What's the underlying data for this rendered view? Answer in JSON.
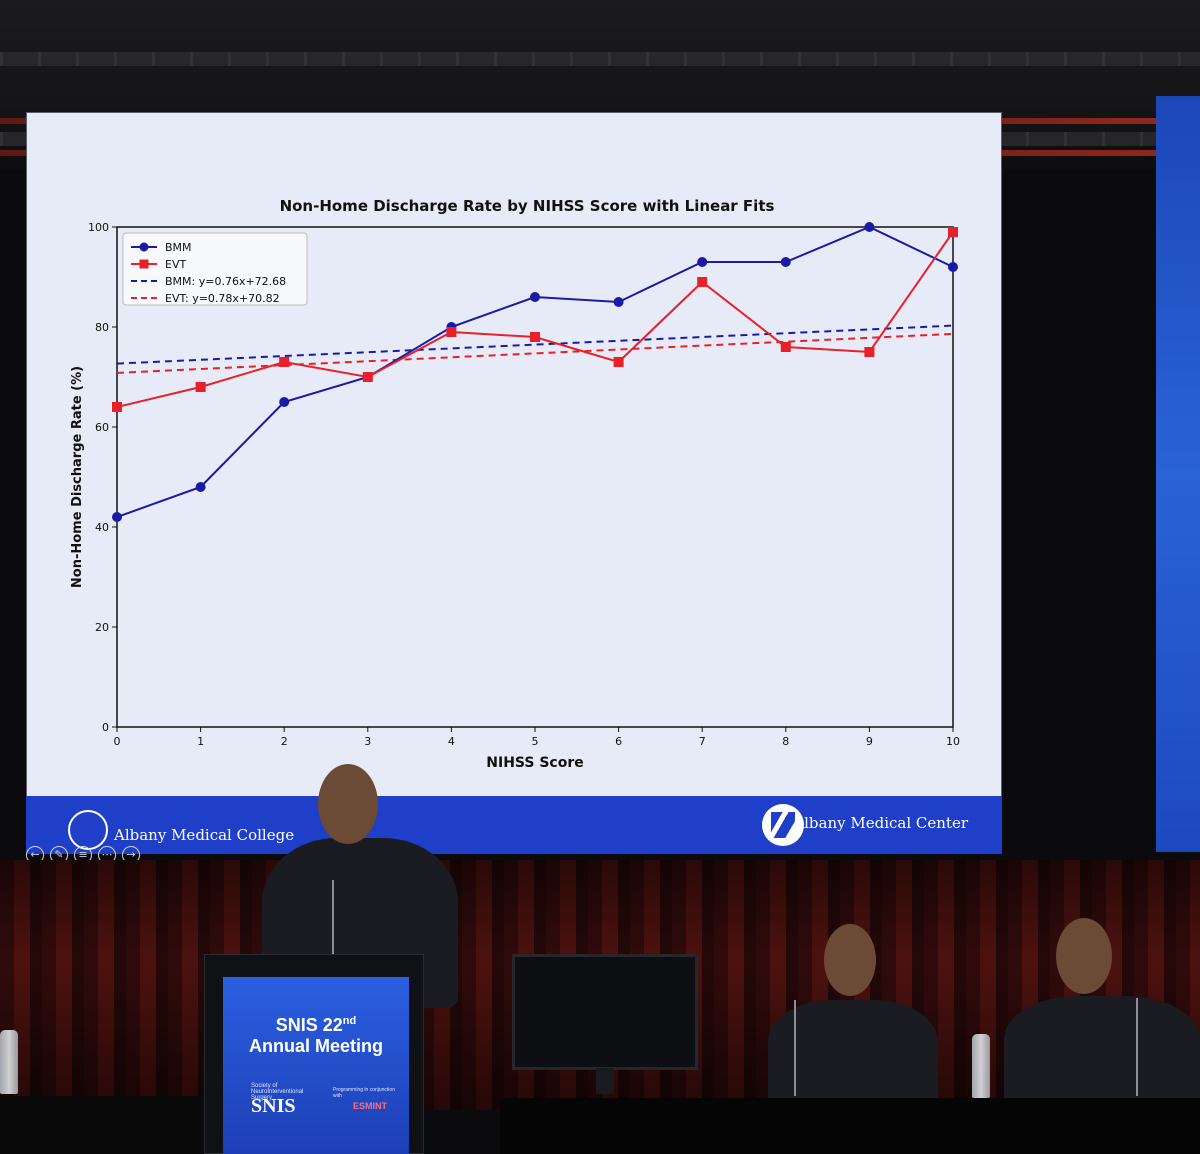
{
  "slide": {
    "footer_left": "Albany Medical College",
    "footer_right": "Albany Medical Center"
  },
  "podium": {
    "line1": "SNIS 22",
    "line1_sup": "nd",
    "line2": "Annual Meeting",
    "org": "SNIS",
    "org_small": "Society of NeuroInterventional Surgery",
    "programming": "Programming in conjunction with",
    "partner": "ESMINT"
  },
  "chart_data": {
    "type": "line",
    "title": "Non-Home Discharge Rate by NIHSS Score with Linear Fits",
    "xlabel": "NIHSS Score",
    "ylabel": "Non-Home Discharge Rate (%)",
    "xlim": [
      0,
      10
    ],
    "ylim": [
      0,
      100
    ],
    "x_ticks": [
      0,
      1,
      2,
      3,
      4,
      5,
      6,
      7,
      8,
      9,
      10
    ],
    "y_ticks": [
      0,
      20,
      40,
      60,
      80,
      100
    ],
    "grid": false,
    "legend_position": "top-left",
    "x": [
      0,
      1,
      2,
      3,
      4,
      5,
      6,
      7,
      8,
      9,
      10
    ],
    "series": [
      {
        "name": "BMM",
        "marker": "circle",
        "color": "#1a1aa6",
        "values": [
          42,
          48,
          65,
          70,
          80,
          86,
          85,
          93,
          93,
          100,
          92
        ]
      },
      {
        "name": "EVT",
        "marker": "square",
        "color": "#e8202a",
        "values": [
          64,
          68,
          73,
          70,
          79,
          78,
          73,
          89,
          76,
          75,
          99
        ]
      }
    ],
    "fits": [
      {
        "name": "BMM: y=0.76x+72.68",
        "slope": 0.76,
        "intercept": 72.68,
        "color": "#1a1aa6",
        "dash": true
      },
      {
        "name": "EVT: y=0.78x+70.82",
        "slope": 0.78,
        "intercept": 70.82,
        "color": "#e8202a",
        "dash": true
      }
    ]
  }
}
